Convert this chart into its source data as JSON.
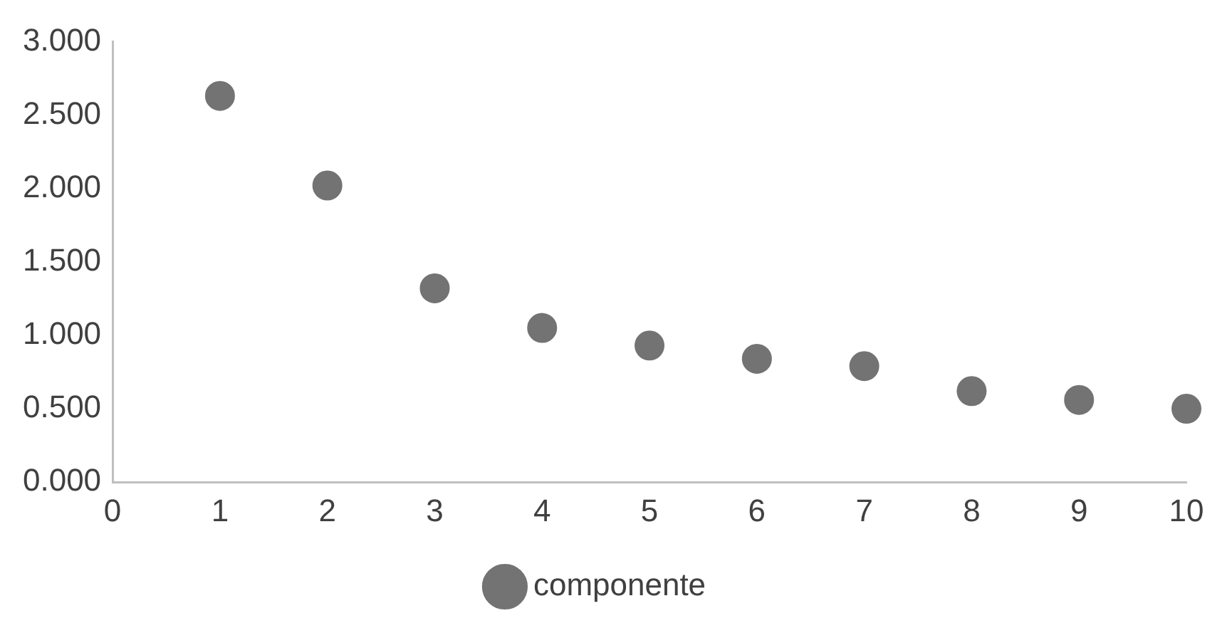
{
  "chart_data": {
    "type": "scatter",
    "x": [
      1,
      2,
      3,
      4,
      5,
      6,
      7,
      8,
      9,
      10
    ],
    "series": [
      {
        "name": "componente",
        "color": "#737373",
        "values": [
          2.63,
          2.02,
          1.32,
          1.05,
          0.93,
          0.84,
          0.79,
          0.62,
          0.56,
          0.5
        ]
      }
    ],
    "xlim": [
      0,
      10
    ],
    "xticks": [
      0,
      1,
      2,
      3,
      4,
      5,
      6,
      7,
      8,
      9,
      10
    ],
    "ylim": [
      0,
      3
    ],
    "yticks": [
      {
        "value": 0,
        "label": "0.000"
      },
      {
        "value": 0.5,
        "label": "0.500"
      },
      {
        "value": 1,
        "label": "1.000"
      },
      {
        "value": 1.5,
        "label": "1.500"
      },
      {
        "value": 2,
        "label": "2.000"
      },
      {
        "value": 2.5,
        "label": "2.500"
      },
      {
        "value": 3,
        "label": "3.000"
      }
    ],
    "grid": false,
    "legend": "bottom",
    "marker": "circle"
  }
}
